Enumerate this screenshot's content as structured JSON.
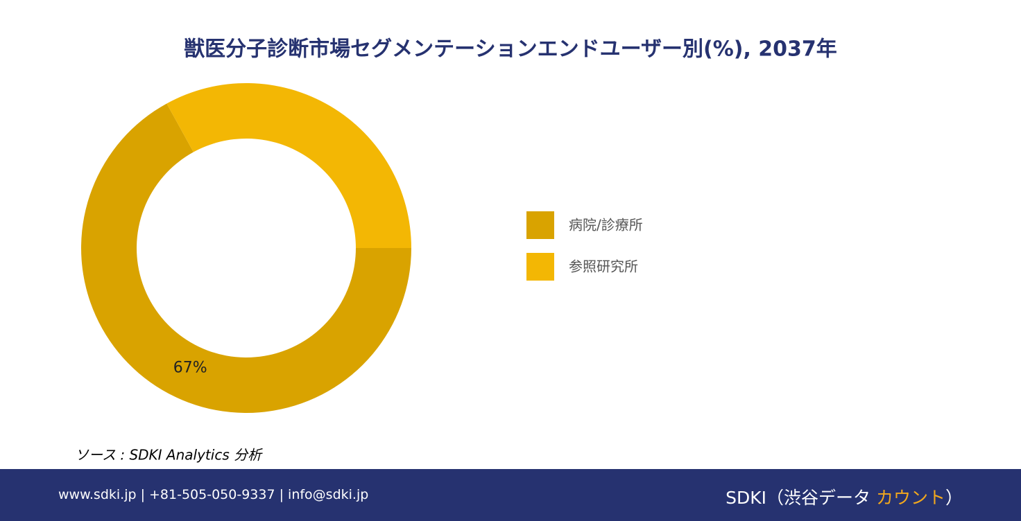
{
  "chart_data": {
    "type": "donut",
    "title": "獣医分子診断市場セグメンテーションエンドユーザー別(%), 2037年",
    "categories": [
      "病院/診療所",
      "参照研究所"
    ],
    "series": [
      {
        "values": [
          67,
          33
        ],
        "value_labels": [
          "67%",
          null
        ],
        "colors": [
          "#d9a300",
          "#f3b704"
        ]
      }
    ],
    "source": "ソース : SDKI Analytics 分析"
  },
  "footer": {
    "contact": "www.sdki.jp | +81-505-050-9337 | info@sdki.jp",
    "brand_prefix": "SDKI（渋谷データ ",
    "brand_highlight": "カウント",
    "brand_suffix": "）"
  }
}
